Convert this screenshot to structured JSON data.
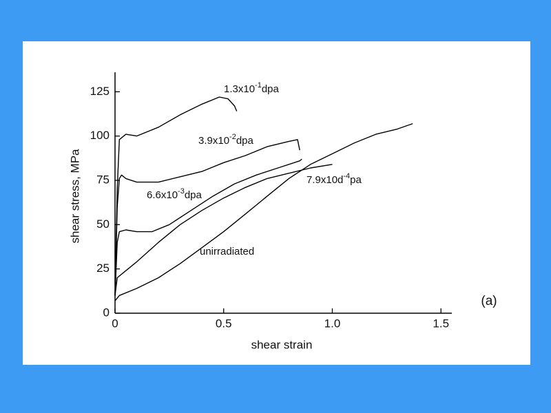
{
  "chart_data": {
    "type": "line",
    "xlabel": "shear strain",
    "ylabel": "shear stress, MPa",
    "panel_label": "(a)",
    "xlim": [
      0,
      1.55
    ],
    "xticks": [
      0,
      0.5,
      {
        "value": 1,
        "label": "1.0"
      },
      1.5
    ],
    "ylim": [
      0,
      136
    ],
    "yticks": [
      0,
      25,
      50,
      75,
      100,
      125
    ],
    "color": "#000000",
    "series": [
      {
        "label": [
          "1.3x10",
          "-1",
          "dpa"
        ],
        "x": [
          0,
          0.01,
          0.02,
          0.05,
          0.1,
          0.2,
          0.3,
          0.4,
          0.48,
          0.52,
          0.55,
          0.56
        ],
        "values": [
          10,
          70,
          98,
          101,
          100,
          105,
          112,
          118,
          122,
          121,
          117,
          114
        ]
      },
      {
        "label": [
          "3.9x10",
          "-2",
          "dpa"
        ],
        "x": [
          0,
          0.01,
          0.02,
          0.03,
          0.05,
          0.1,
          0.2,
          0.3,
          0.4,
          0.5,
          0.6,
          0.7,
          0.8,
          0.84,
          0.85
        ],
        "values": [
          10,
          60,
          76,
          78,
          76,
          74,
          74,
          77,
          80,
          85,
          89,
          94,
          97,
          98,
          92
        ]
      },
      {
        "label": [
          "6.6x10",
          "-3",
          "dpa"
        ],
        "x": [
          0,
          0.01,
          0.02,
          0.05,
          0.1,
          0.17,
          0.25,
          0.35,
          0.45,
          0.55,
          0.65,
          0.75,
          0.85,
          0.86
        ],
        "values": [
          10,
          40,
          46,
          47,
          46,
          46,
          50,
          58,
          66,
          73,
          78,
          82,
          86,
          87
        ]
      },
      {
        "label": [
          "7.9x10d",
          "-4",
          "pa"
        ],
        "x": [
          0,
          0.01,
          0.05,
          0.1,
          0.2,
          0.3,
          0.4,
          0.5,
          0.6,
          0.7,
          0.8,
          0.9,
          1.0
        ],
        "values": [
          10,
          20,
          24,
          29,
          40,
          50,
          58,
          65,
          71,
          76,
          79,
          82,
          84
        ]
      },
      {
        "label": [
          "unirradiated"
        ],
        "x": [
          0,
          0.02,
          0.1,
          0.2,
          0.3,
          0.4,
          0.5,
          0.6,
          0.7,
          0.8,
          0.9,
          1.0,
          1.1,
          1.2,
          1.3,
          1.37
        ],
        "values": [
          7,
          10,
          14,
          20,
          28,
          37,
          46,
          56,
          66,
          76,
          84,
          90,
          96,
          101,
          104,
          107
        ]
      }
    ]
  }
}
